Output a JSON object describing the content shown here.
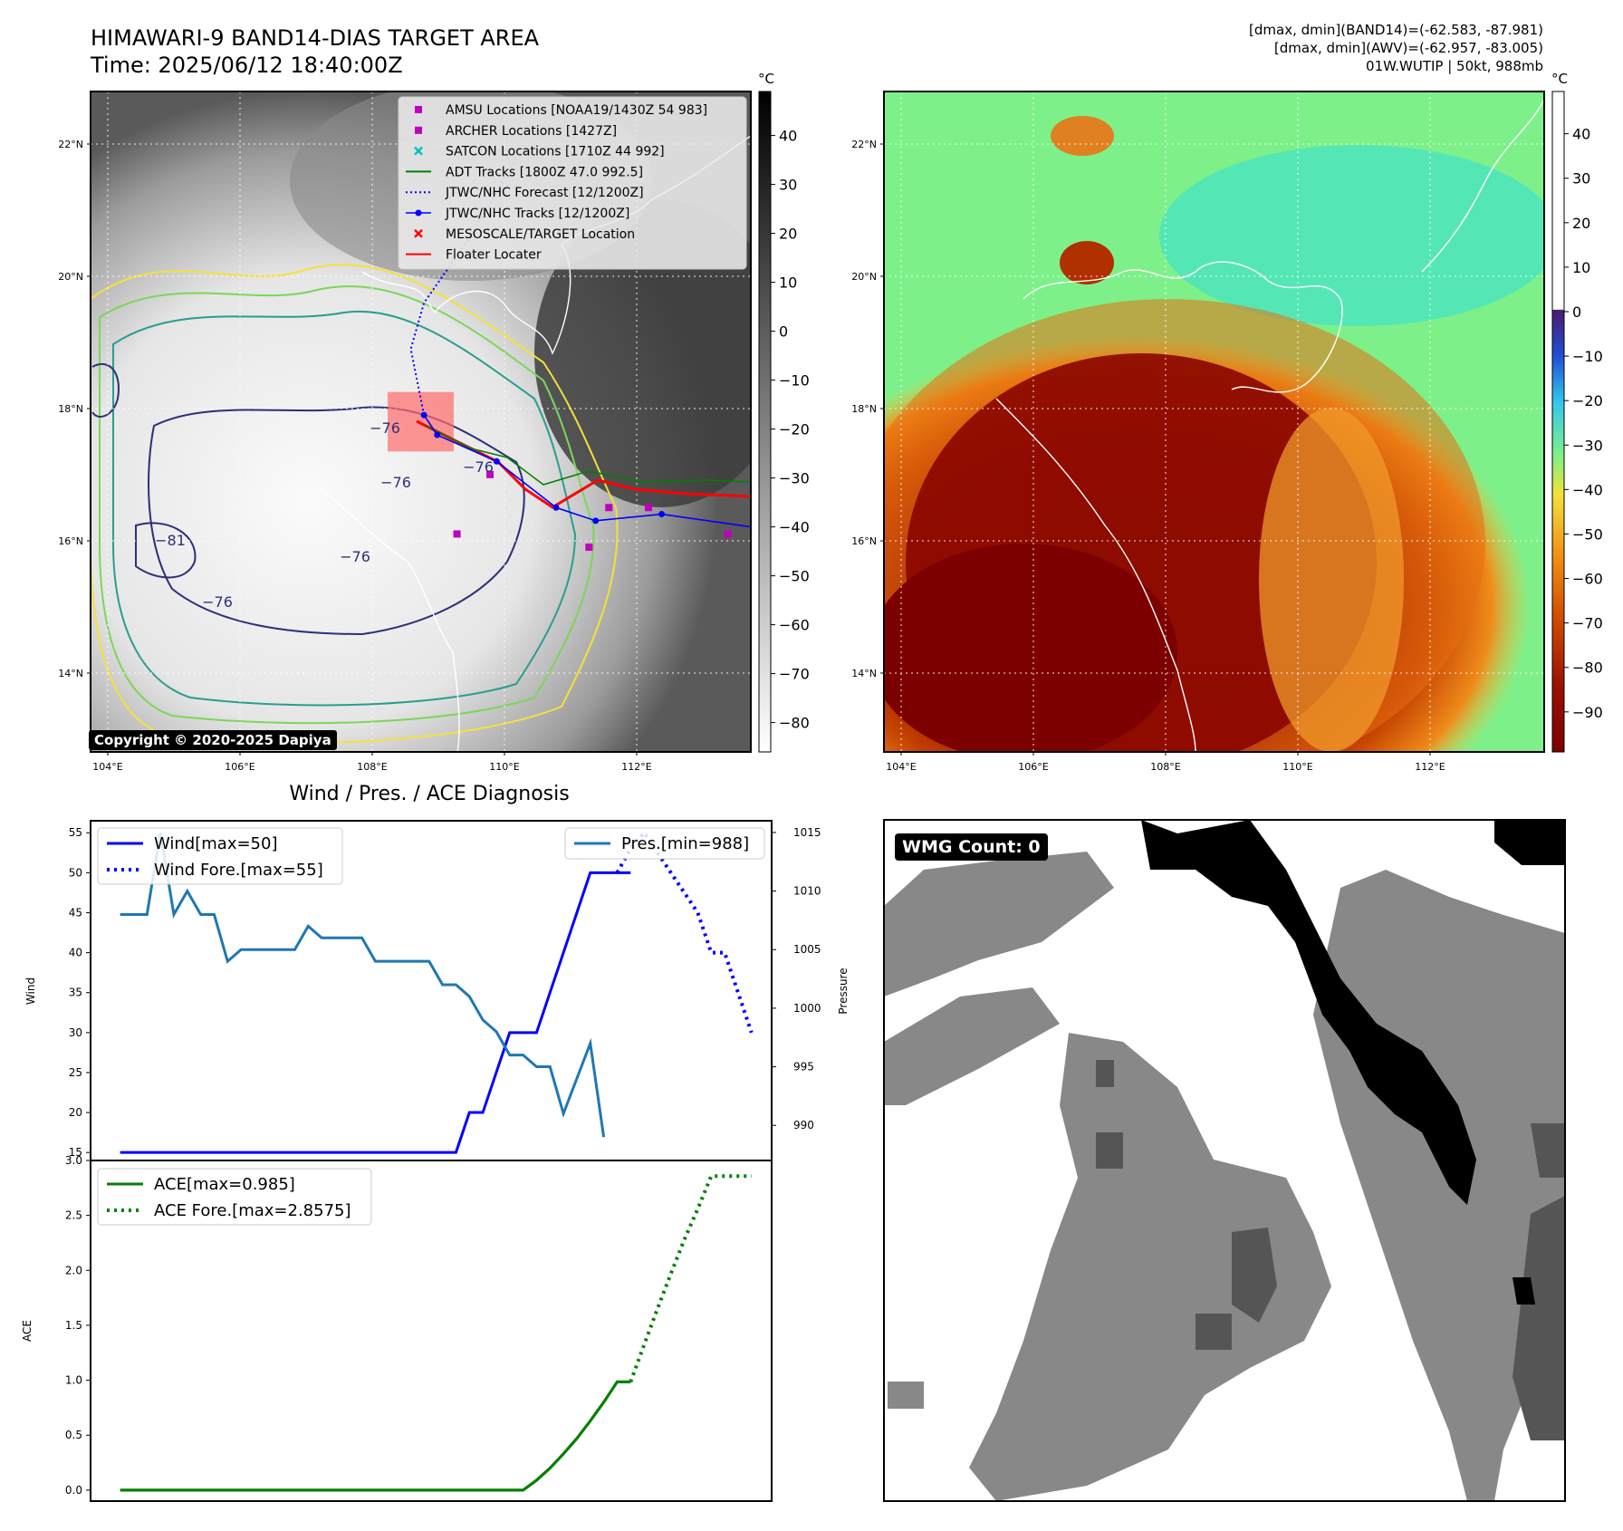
{
  "header": {
    "title": "HIMAWARI-9 BAND14-DIAS TARGET AREA",
    "time": "Time: 2025/06/12 18:40:00Z",
    "info_line1": "[dmax, dmin](BAND14)=(-62.583, -87.981)",
    "info_line2": "[dmax, dmin](AWV)=(-62.957, -83.005)",
    "info_line3": "01W.WUTIP | 50kt, 988mb"
  },
  "copyright": "Copyright © 2020-2025 Dapiya",
  "wmg_label": "WMG Count: 0",
  "colors": {
    "wind": "#0000ff",
    "pressure": "#1f77b4",
    "ace": "#008000",
    "track_red": "#ff0000",
    "contour_navy": "#2b2f7a",
    "contour_teal": "#2a9d8f",
    "contour_green": "#7cd65b",
    "contour_yellow": "#f2e23a"
  },
  "chart_data": [
    {
      "type": "map",
      "panel": "band14",
      "colorbar_unit": "°C",
      "colorbar_ticks": [
        40,
        30,
        20,
        10,
        0,
        -10,
        -20,
        -30,
        -40,
        -50,
        -60,
        -70,
        -80
      ],
      "lon_ticks": [
        "104°E",
        "106°E",
        "108°E",
        "110°E",
        "112°E"
      ],
      "lat_ticks": [
        "22°N",
        "20°N",
        "18°N",
        "16°N",
        "14°N"
      ],
      "lon_range": [
        103.75,
        113.75
      ],
      "lat_range": [
        12.8,
        22.8
      ],
      "legend": [
        {
          "label": "AMSU Locations [NOAA19/1430Z 54 983]",
          "style": "square",
          "color": "#bf00bf"
        },
        {
          "label": "ARCHER Locations [1427Z]",
          "style": "square",
          "color": "#bf00bf"
        },
        {
          "label": "SATCON Locations [1710Z 44 992]",
          "style": "x",
          "color": "#00bfbf"
        },
        {
          "label": "ADT Tracks [1800Z 47.0 992.5]",
          "style": "line",
          "color": "#008000"
        },
        {
          "label": "JTWC/NHC Forecast [12/1200Z]",
          "style": "dotted",
          "color": "#0000ff"
        },
        {
          "label": "JTWC/NHC Tracks [12/1200Z]",
          "style": "line-dot",
          "color": "#0000ff"
        },
        {
          "label": "MESOSCALE/TARGET Location",
          "style": "x",
          "color": "#ff0000"
        },
        {
          "label": "Floater Locater",
          "style": "line",
          "color": "#ff0000"
        }
      ],
      "contour_labels": [
        "-76",
        "-76",
        "-76",
        "-81",
        "-76",
        "-76"
      ],
      "jtwc_track": [
        [
          113.8,
          16.2
        ],
        [
          112.4,
          16.4
        ],
        [
          111.4,
          16.3
        ],
        [
          110.8,
          16.5
        ],
        [
          109.9,
          17.2
        ],
        [
          109.0,
          17.6
        ],
        [
          108.8,
          17.9
        ]
      ],
      "jtwc_forecast": [
        [
          108.8,
          17.9
        ],
        [
          108.6,
          18.9
        ],
        [
          108.8,
          19.6
        ],
        [
          109.5,
          20.6
        ],
        [
          110.2,
          21.8
        ]
      ],
      "amsu_points": [
        [
          109.8,
          17.0
        ],
        [
          109.3,
          16.1
        ],
        [
          111.3,
          15.9
        ],
        [
          111.6,
          16.5
        ],
        [
          112.2,
          16.5
        ],
        [
          113.4,
          16.1
        ]
      ],
      "target_box": {
        "lon": [
          108.25,
          109.25
        ],
        "lat": [
          17.35,
          18.25
        ]
      }
    },
    {
      "type": "map",
      "panel": "awv",
      "colorbar_unit": "°C",
      "colorbar_ticks": [
        40,
        30,
        20,
        10,
        0,
        -10,
        -20,
        -30,
        -40,
        -50,
        -60,
        -70,
        -80,
        -90
      ],
      "lon_ticks": [
        "104°E",
        "106°E",
        "108°E",
        "110°E",
        "112°E"
      ],
      "lat_ticks": [
        "22°N",
        "20°N",
        "18°N",
        "16°N",
        "14°N"
      ]
    },
    {
      "type": "line",
      "title": "Wind / Pres. / ACE Diagnosis",
      "ylabel_left": "Wind",
      "ylabel_right": "Pressure",
      "wind_ylim": [
        14,
        56.5
      ],
      "wind_yticks": [
        15,
        20,
        25,
        30,
        35,
        40,
        45,
        50,
        55
      ],
      "pres_ylim": [
        987.0,
        1016.0
      ],
      "pres_yticks": [
        990,
        995,
        1000,
        1005,
        1010,
        1015
      ],
      "x": [
        0,
        1,
        2,
        3,
        4,
        5,
        6,
        7,
        8,
        9,
        10,
        11,
        12,
        13,
        14,
        15,
        16,
        17,
        18,
        19,
        20,
        21,
        22,
        23,
        24,
        25,
        26,
        27,
        28,
        29,
        30,
        31,
        32,
        33,
        34,
        35,
        36,
        37,
        38
      ],
      "xlim": [
        -2.2,
        48.5
      ],
      "series": [
        {
          "name": "Wind[max=50]",
          "axis": "left",
          "style": "solid",
          "color": "#0000ff",
          "x": [
            0,
            1,
            2,
            3,
            4,
            5,
            6,
            7,
            8,
            9,
            10,
            11,
            12,
            13,
            14,
            15,
            16,
            17,
            18,
            19,
            20,
            21,
            22,
            23,
            24,
            25,
            26,
            27,
            28,
            29,
            30,
            31,
            32,
            33,
            34,
            35,
            36,
            37,
            38
          ],
          "values": [
            15,
            15,
            15,
            15,
            15,
            15,
            15,
            15,
            15,
            15,
            15,
            15,
            15,
            15,
            15,
            15,
            15,
            15,
            15,
            15,
            15,
            15,
            15,
            15,
            15,
            15,
            20,
            20,
            25,
            30,
            30,
            30,
            35,
            40,
            45,
            50,
            50,
            50,
            50
          ]
        },
        {
          "name": "Wind Fore.[max=55]",
          "axis": "left",
          "style": "dotted",
          "color": "#0000ff",
          "x": [
            37,
            38,
            39,
            40,
            41,
            42,
            43,
            44,
            45,
            46,
            47
          ],
          "values": [
            50,
            53,
            55,
            52.5,
            50,
            47.5,
            45,
            40,
            40,
            35,
            30
          ]
        },
        {
          "name": "Pres.[min=988]",
          "axis": "right",
          "style": "solid",
          "color": "#1f77b4",
          "x": [
            0,
            1,
            2,
            3,
            4,
            5,
            6,
            7,
            8,
            9,
            10,
            11,
            12,
            13,
            14,
            15,
            16,
            17,
            18,
            19,
            20,
            21,
            22,
            23,
            24,
            25,
            26,
            27,
            28,
            29,
            30,
            31,
            32,
            33,
            34,
            35,
            36
          ],
          "values": [
            1008,
            1008,
            1008,
            1015,
            1008,
            1010,
            1008,
            1008,
            1004,
            1005,
            1005,
            1005,
            1005,
            1005,
            1007,
            1006,
            1006,
            1006,
            1006,
            1004,
            1004,
            1004,
            1004,
            1004,
            1002,
            1002,
            1001,
            999,
            998,
            996,
            996,
            995,
            995,
            991,
            994,
            997,
            989
          ]
        }
      ]
    },
    {
      "type": "line",
      "ylabel": "ACE",
      "ylim": [
        -0.1,
        3.0
      ],
      "yticks": [
        0.0,
        0.5,
        1.0,
        1.5,
        2.0,
        2.5,
        3.0
      ],
      "ytick_labels": [
        "0.0",
        "0.5",
        "1.0",
        "1.5",
        "2.0",
        "2.5",
        "3.0"
      ],
      "xlim": [
        -2.2,
        48.5
      ],
      "series": [
        {
          "name": "ACE[max=0.985]",
          "style": "solid",
          "color": "#008000",
          "x": [
            0,
            1,
            2,
            3,
            4,
            5,
            6,
            7,
            8,
            9,
            10,
            11,
            12,
            13,
            14,
            15,
            16,
            17,
            18,
            19,
            20,
            21,
            22,
            23,
            24,
            25,
            26,
            27,
            28,
            29,
            30,
            31,
            32,
            33,
            34,
            35,
            36,
            37,
            38
          ],
          "values": [
            0,
            0,
            0,
            0,
            0,
            0,
            0,
            0,
            0,
            0,
            0,
            0,
            0,
            0,
            0,
            0,
            0,
            0,
            0,
            0,
            0,
            0,
            0,
            0,
            0,
            0,
            0,
            0,
            0,
            0,
            0,
            0.09,
            0.2,
            0.33,
            0.47,
            0.63,
            0.8,
            0.985,
            0.985
          ]
        },
        {
          "name": "ACE Fore.[max=2.8575]",
          "style": "dotted",
          "color": "#008000",
          "x": [
            38,
            39,
            40,
            41,
            42,
            43,
            44,
            45,
            46,
            47
          ],
          "values": [
            0.985,
            1.32,
            1.65,
            1.97,
            2.28,
            2.56,
            2.8575,
            2.8575,
            2.8575,
            2.8575
          ]
        }
      ]
    }
  ]
}
